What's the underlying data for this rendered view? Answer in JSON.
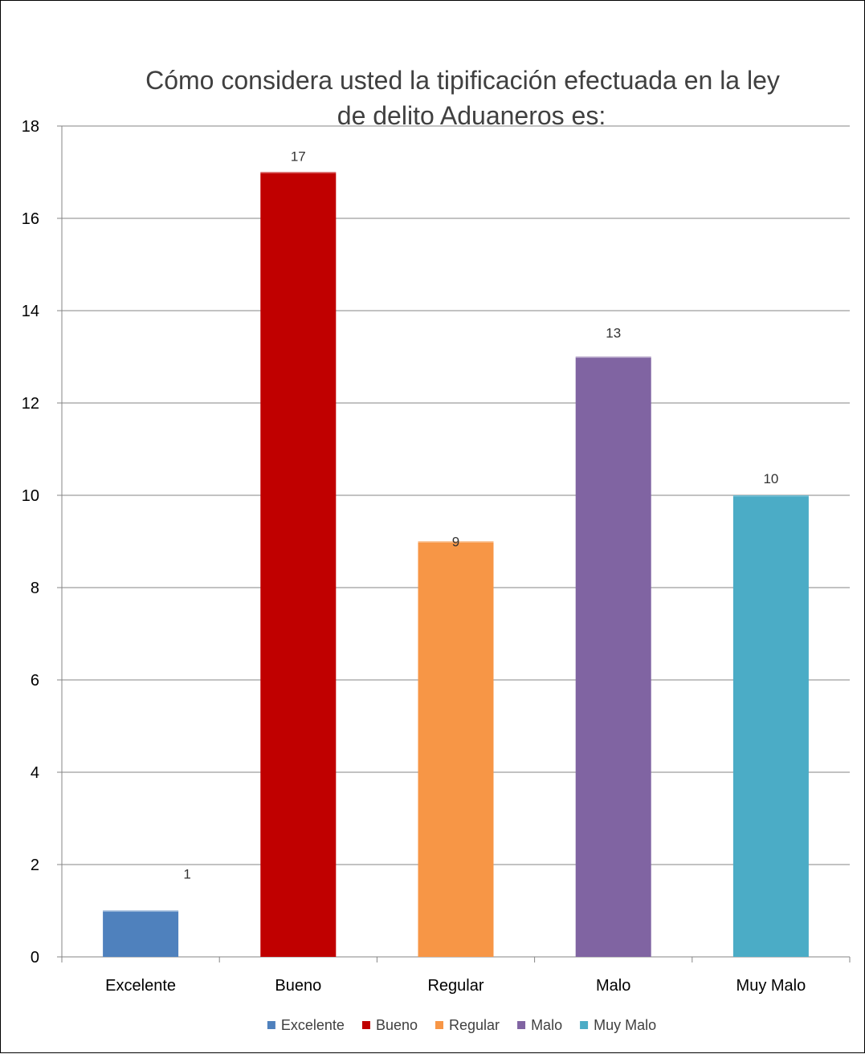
{
  "chart_data": {
    "type": "bar",
    "title_lines": [
      "Cómo considera usted la  tipificación efectuada en la ley",
      "de delito Aduaneros es:"
    ],
    "categories": [
      "Excelente",
      "Bueno",
      "Regular",
      "Malo",
      "Muy Malo"
    ],
    "values": [
      1,
      17,
      9,
      13,
      10
    ],
    "colors": [
      "#4f81bd",
      "#c00000",
      "#f79646",
      "#8064a2",
      "#4bacc6"
    ],
    "data_labels": [
      "1",
      "17",
      "9",
      "13",
      "10"
    ],
    "ylim": [
      0,
      18
    ],
    "yticks": [
      0,
      2,
      4,
      6,
      8,
      10,
      12,
      14,
      16,
      18
    ],
    "grid": true,
    "legend_position": "bottom",
    "legend": [
      "Excelente",
      "Bueno",
      "Regular",
      "Malo",
      "Muy Malo"
    ],
    "xlabel": "",
    "ylabel": ""
  }
}
